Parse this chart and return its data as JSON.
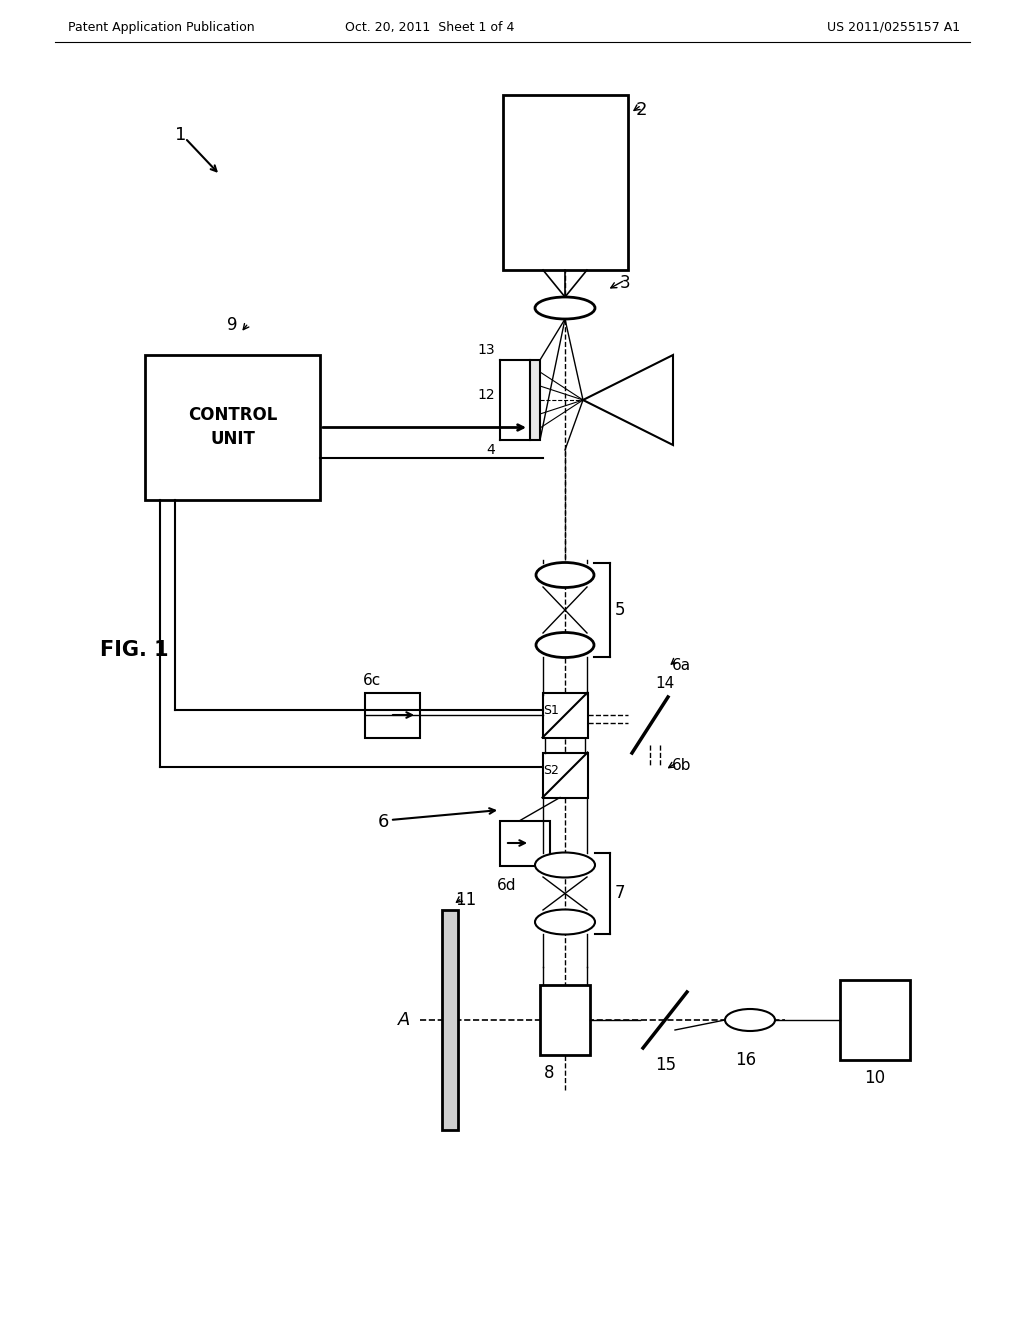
{
  "background_color": "#ffffff",
  "line_color": "#000000",
  "header_left": "Patent Application Publication",
  "header_center": "Oct. 20, 2011  Sheet 1 of 4",
  "header_right": "US 2011/0255157 A1",
  "figure_label": "FIG. 1"
}
